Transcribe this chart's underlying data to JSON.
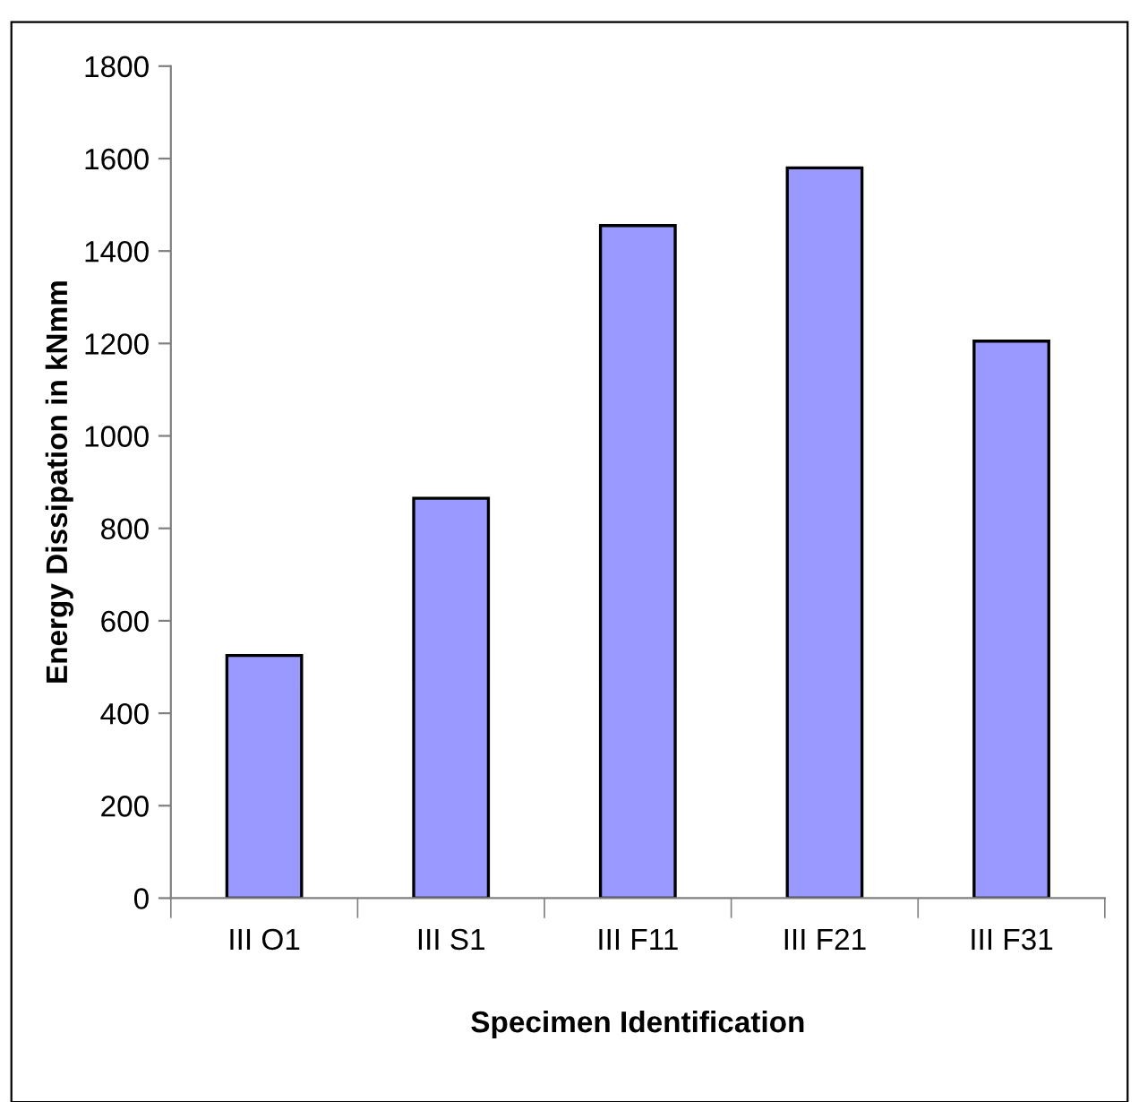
{
  "chart_data": {
    "type": "bar",
    "xlabel": "Specimen Identification",
    "ylabel": "Energy Dissipation in kNmm",
    "categories": [
      "III O1",
      "III S1",
      "III F11",
      "III F21",
      "III F31"
    ],
    "values": [
      525,
      865,
      1455,
      1580,
      1205
    ],
    "color": "#9999ff",
    "ylim": [
      0,
      1800
    ],
    "yticks": [
      0,
      200,
      400,
      600,
      800,
      1000,
      1200,
      1400,
      1600,
      1800
    ],
    "grid": false,
    "legend": false
  }
}
